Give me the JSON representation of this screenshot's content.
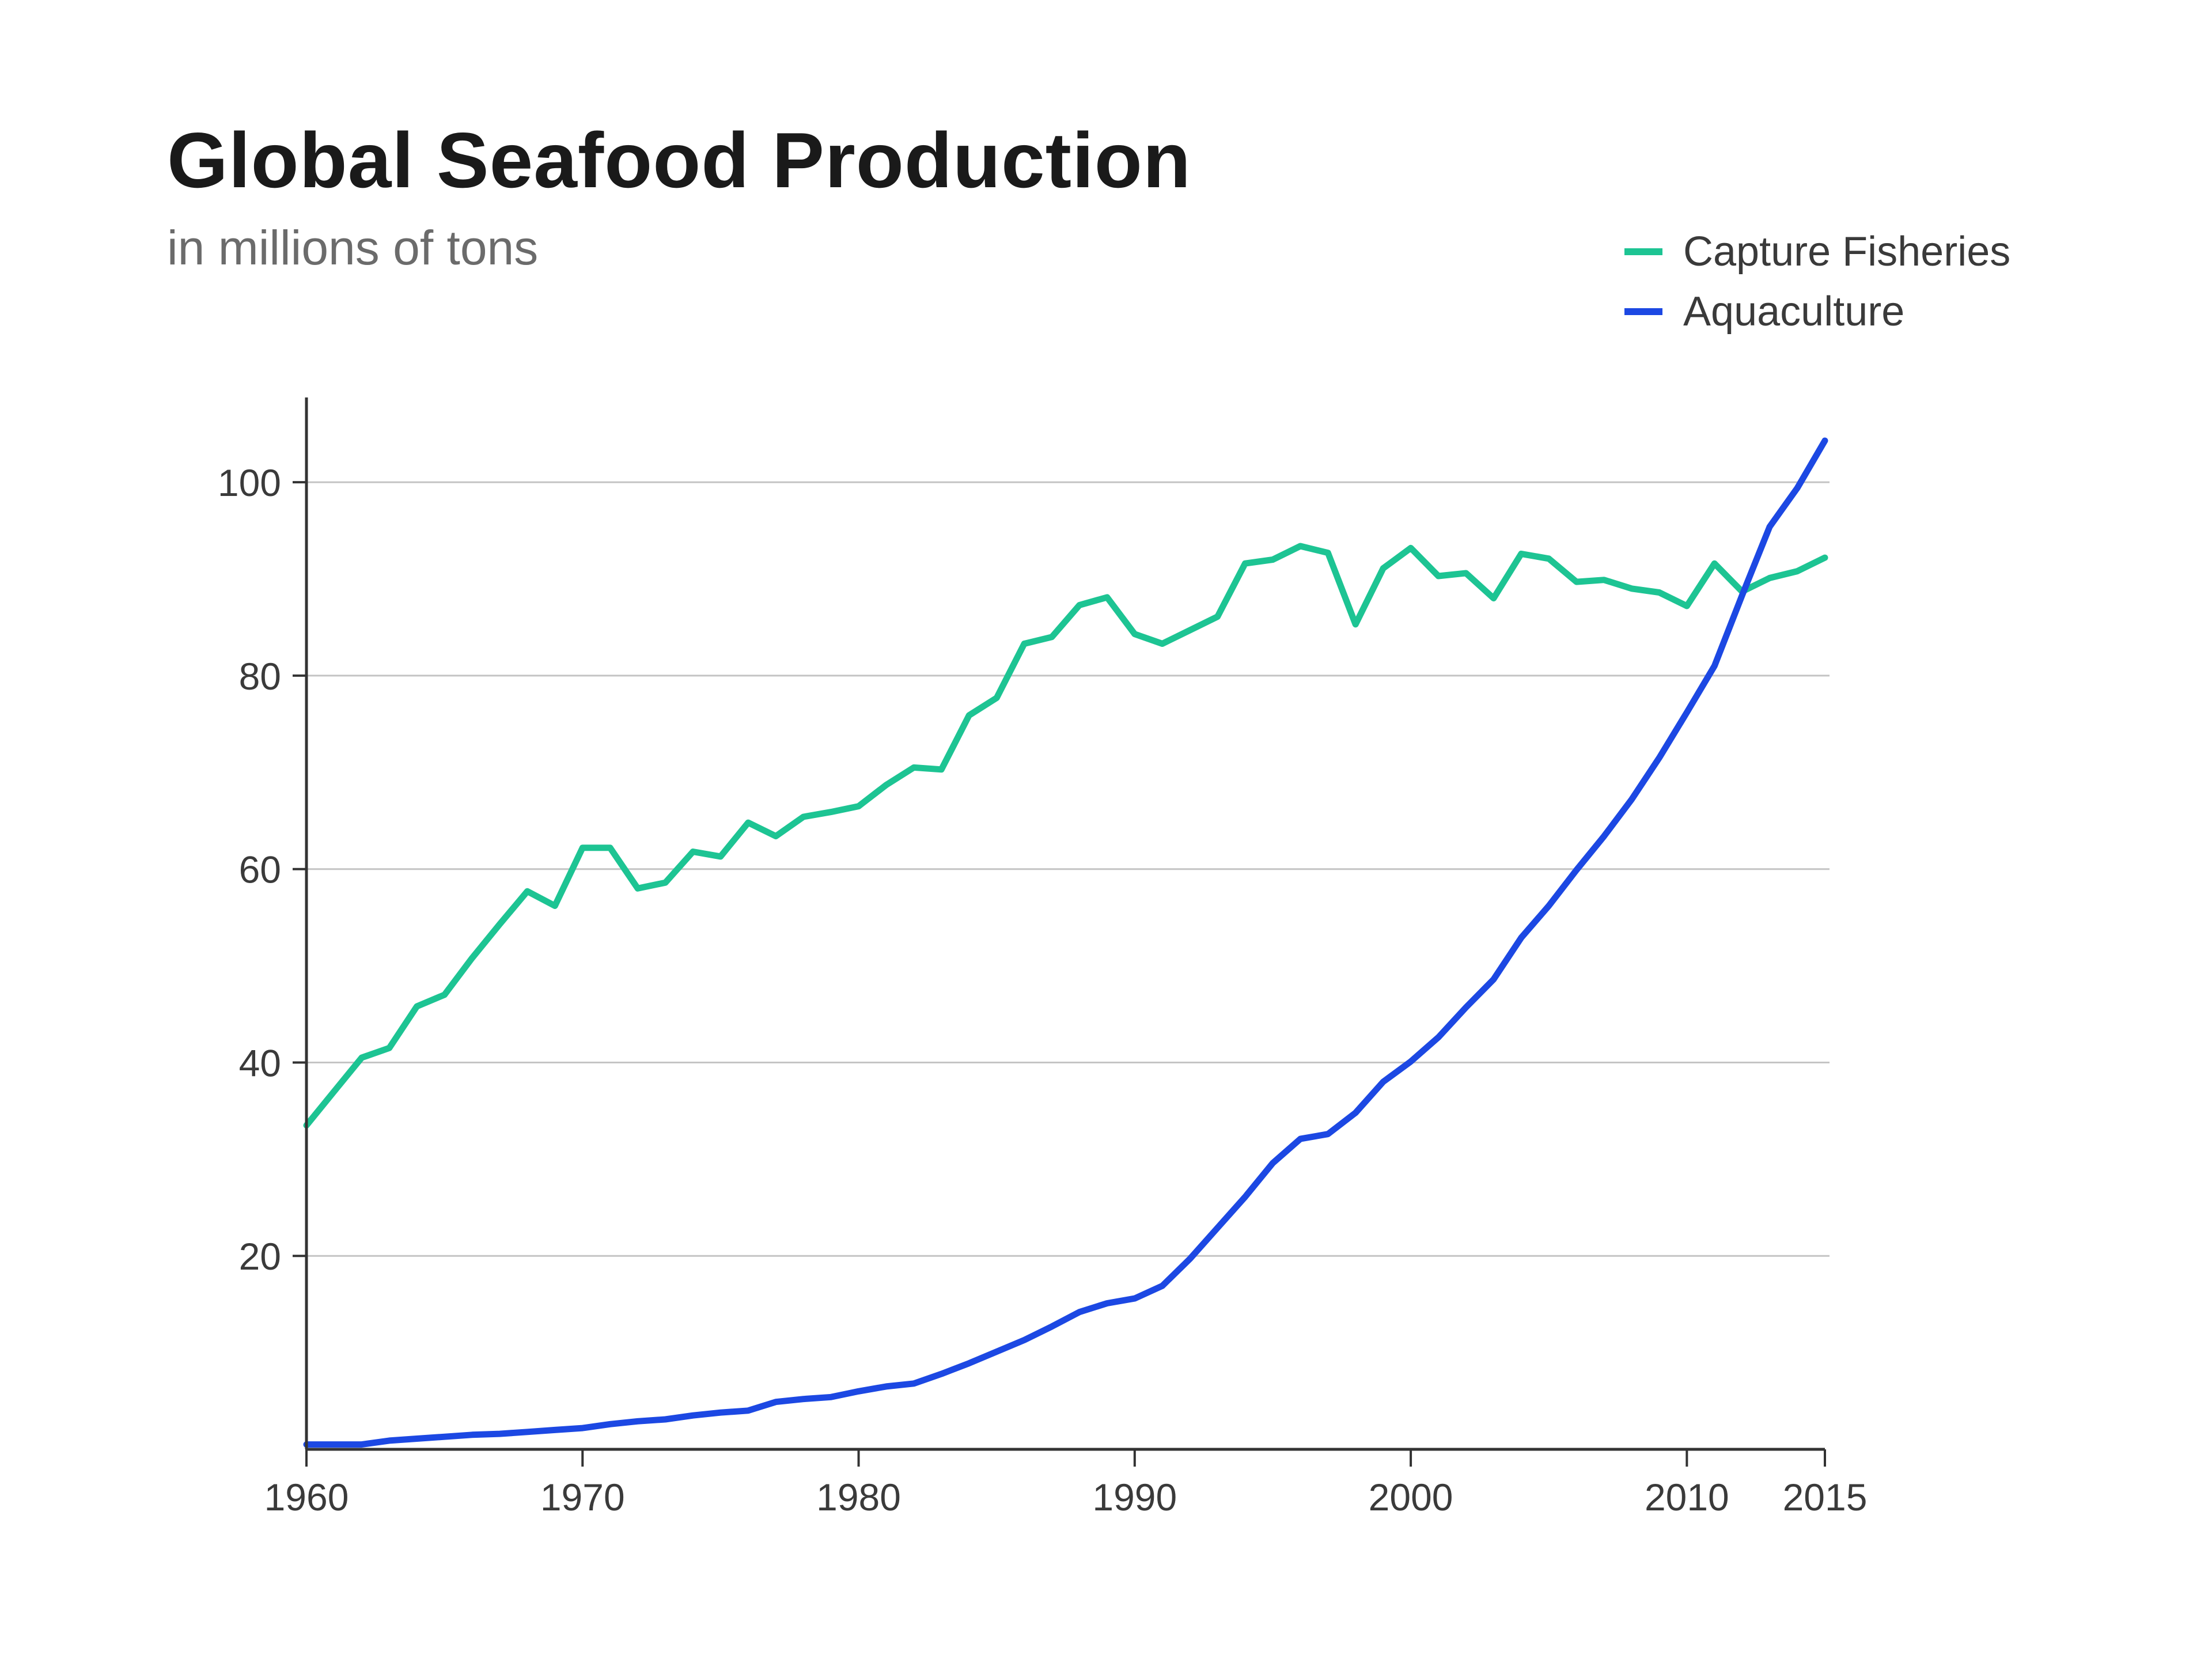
{
  "title": "Global Seafood Production",
  "subtitle": "in millions of tons",
  "chart_data": {
    "type": "line",
    "title": "Global Seafood Production",
    "subtitle": "in millions of tons",
    "xlabel": "",
    "ylabel": "",
    "xlim": [
      1960,
      2015
    ],
    "ylim": [
      0,
      104
    ],
    "x_ticks": [
      1960,
      1970,
      1980,
      1990,
      2000,
      2010,
      2015
    ],
    "y_ticks": [
      20,
      40,
      60,
      80,
      100
    ],
    "grid": "horizontal",
    "legend": "top-right",
    "x": [
      1960,
      1961,
      1962,
      1963,
      1964,
      1965,
      1966,
      1967,
      1968,
      1969,
      1970,
      1971,
      1972,
      1973,
      1974,
      1975,
      1976,
      1977,
      1978,
      1979,
      1980,
      1981,
      1982,
      1983,
      1984,
      1985,
      1986,
      1987,
      1988,
      1989,
      1990,
      1991,
      1992,
      1993,
      1994,
      1995,
      1996,
      1997,
      1998,
      1999,
      2000,
      2001,
      2002,
      2003,
      2004,
      2005,
      2006,
      2007,
      2008,
      2009,
      2010,
      2011,
      2012,
      2013,
      2014,
      2015
    ],
    "series": [
      {
        "name": "Capture Fisheries",
        "color": "#1dc493",
        "values": [
          33.5,
          37,
          40.5,
          41.5,
          45.8,
          47,
          50.8,
          54.3,
          57.7,
          56.2,
          62.2,
          62.2,
          58,
          58.6,
          61.8,
          61.3,
          64.8,
          63.4,
          65.4,
          65.9,
          66.5,
          68.7,
          70.5,
          70.3,
          75.9,
          77.7,
          83.3,
          84,
          87.3,
          88.1,
          84.3,
          83.3,
          84.7,
          86.1,
          91.6,
          92,
          93.4,
          92.7,
          85.3,
          91.1,
          93.2,
          90.3,
          90.6,
          88,
          92.6,
          92.1,
          89.7,
          89.9,
          89,
          88.6,
          87.2,
          91.6,
          88.7,
          90.1,
          90.8,
          92.2
        ]
      },
      {
        "name": "Aquaculture",
        "color": "#1c48e3",
        "values": [
          0.5,
          0.5,
          0.5,
          0.9,
          1.1,
          1.3,
          1.5,
          1.6,
          1.8,
          2.0,
          2.2,
          2.6,
          2.9,
          3.1,
          3.5,
          3.8,
          4.0,
          4.9,
          5.2,
          5.4,
          6.0,
          6.5,
          6.8,
          7.8,
          8.9,
          10.1,
          11.3,
          12.7,
          14.2,
          15.1,
          15.6,
          16.9,
          19.7,
          22.9,
          26.1,
          29.6,
          32.1,
          32.6,
          34.8,
          38,
          40.1,
          42.6,
          45.7,
          48.6,
          52.9,
          56.2,
          59.9,
          63.4,
          67.2,
          71.5,
          76.2,
          81,
          88.3,
          95.4,
          99.4,
          104.3
        ]
      }
    ]
  }
}
